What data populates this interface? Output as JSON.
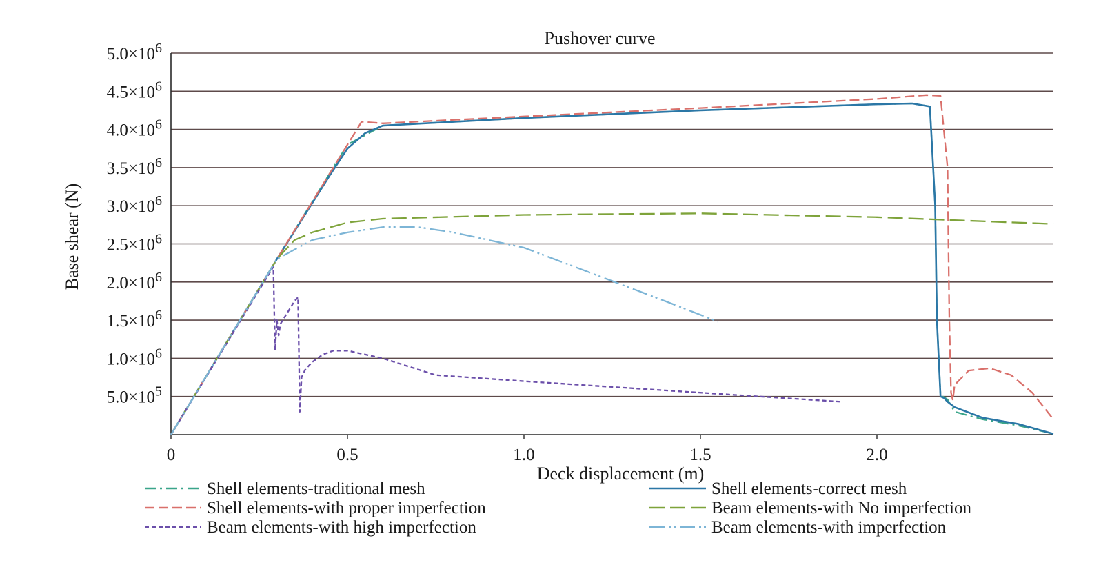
{
  "chart_data": {
    "type": "line",
    "title": "Pushover curve",
    "xlabel": "Deck displacement (m)",
    "ylabel": "Base shear (N)",
    "xlim": [
      0,
      2.5
    ],
    "ylim": [
      0,
      5000000
    ],
    "grid": "horizontal",
    "x_ticks": [
      {
        "value": 0,
        "label": "0"
      },
      {
        "value": 0.5,
        "label": "0.5"
      },
      {
        "value": 1.0,
        "label": "1.0"
      },
      {
        "value": 1.5,
        "label": "1.5"
      },
      {
        "value": 2.0,
        "label": "2.0"
      }
    ],
    "y_ticks": [
      {
        "value": 500000,
        "mant": "5.0×10",
        "exp": "5"
      },
      {
        "value": 1000000,
        "mant": "1.0×10",
        "exp": "6"
      },
      {
        "value": 1500000,
        "mant": "1.5×10",
        "exp": "6"
      },
      {
        "value": 2000000,
        "mant": "2.0×10",
        "exp": "6"
      },
      {
        "value": 2500000,
        "mant": "2.5×10",
        "exp": "6"
      },
      {
        "value": 3000000,
        "mant": "3.0×10",
        "exp": "6"
      },
      {
        "value": 3500000,
        "mant": "3.5×10",
        "exp": "6"
      },
      {
        "value": 4000000,
        "mant": "4.0×10",
        "exp": "6"
      },
      {
        "value": 4500000,
        "mant": "4.5×10",
        "exp": "6"
      },
      {
        "value": 5000000,
        "mant": "5.0×10",
        "exp": "6"
      }
    ],
    "legend_position": "bottom",
    "series": [
      {
        "name": "Shell elements-traditional mesh",
        "color": "#3aa58a",
        "dash": "long-dash-dot",
        "x": [
          0,
          0.3,
          0.5,
          0.6,
          1.0,
          1.5,
          2.0,
          2.1,
          2.15,
          2.165,
          2.17,
          2.18,
          2.2,
          2.22,
          2.3,
          2.4,
          2.5
        ],
        "y": [
          0,
          2300000,
          3800000,
          4050000,
          4150000,
          4250000,
          4330000,
          4340000,
          4300000,
          3000000,
          1500000,
          520000,
          460000,
          300000,
          200000,
          120000,
          10000
        ]
      },
      {
        "name": "Shell elements-correct mesh",
        "color": "#2b77a6",
        "dash": "solid",
        "x": [
          0,
          0.3,
          0.45,
          0.5,
          0.55,
          0.6,
          1.0,
          1.5,
          2.0,
          2.1,
          2.15,
          2.165,
          2.17,
          2.18,
          2.19,
          2.2,
          2.22,
          2.3,
          2.4,
          2.5
        ],
        "y": [
          0,
          2300000,
          3400000,
          3750000,
          3950000,
          4050000,
          4150000,
          4250000,
          4330000,
          4340000,
          4300000,
          3000000,
          1500000,
          500000,
          480000,
          430000,
          360000,
          220000,
          140000,
          10000
        ]
      },
      {
        "name": "Shell elements-with proper imperfection",
        "color": "#d9706b",
        "dash": "dashed",
        "x": [
          0,
          0.3,
          0.5,
          0.54,
          0.6,
          1.0,
          1.5,
          2.0,
          2.14,
          2.18,
          2.2,
          2.205,
          2.21,
          2.215,
          2.22,
          2.26,
          2.32,
          2.38,
          2.44,
          2.5
        ],
        "y": [
          0,
          2300000,
          3800000,
          4100000,
          4080000,
          4170000,
          4280000,
          4400000,
          4450000,
          4440000,
          3500000,
          1500000,
          550000,
          450000,
          650000,
          840000,
          870000,
          780000,
          550000,
          200000
        ]
      },
      {
        "name": "Beam elements-with No imperfection",
        "color": "#7ea33a",
        "dash": "long-dash",
        "x": [
          0,
          0.3,
          0.35,
          0.4,
          0.5,
          0.6,
          1.0,
          1.5,
          2.0,
          2.5
        ],
        "y": [
          0,
          2300000,
          2550000,
          2650000,
          2780000,
          2830000,
          2880000,
          2900000,
          2850000,
          2760000
        ]
      },
      {
        "name": "Beam elements-with high imperfection",
        "color": "#6b4faa",
        "dash": "short-dash",
        "x": [
          0,
          0.29,
          0.295,
          0.3,
          0.305,
          0.31,
          0.33,
          0.35,
          0.36,
          0.365,
          0.37,
          0.38,
          0.4,
          0.43,
          0.46,
          0.5,
          0.6,
          0.75,
          1.0,
          1.5,
          1.9
        ],
        "y": [
          0,
          2200000,
          1100000,
          1500000,
          1300000,
          1450000,
          1600000,
          1750000,
          1800000,
          300000,
          750000,
          850000,
          950000,
          1050000,
          1100000,
          1100000,
          1000000,
          780000,
          700000,
          550000,
          430000
        ]
      },
      {
        "name": "Beam elements-with imperfection",
        "color": "#7db5d6",
        "dash": "long-dash-dot-dot",
        "x": [
          0,
          0.3,
          0.4,
          0.5,
          0.6,
          0.7,
          0.8,
          1.0,
          1.2,
          1.4,
          1.55
        ],
        "y": [
          0,
          2300000,
          2550000,
          2650000,
          2720000,
          2720000,
          2650000,
          2450000,
          2100000,
          1750000,
          1480000
        ]
      }
    ]
  }
}
